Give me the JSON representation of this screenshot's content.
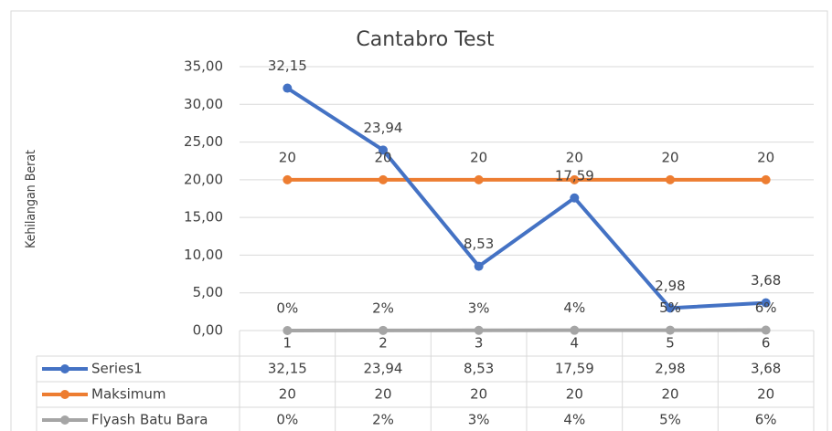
{
  "chart_data": {
    "type": "line",
    "title": "Cantabro Test",
    "y_label": "Kehilangan Berat",
    "categories": [
      "1",
      "2",
      "3",
      "4",
      "5",
      "6"
    ],
    "series": [
      {
        "name": "Series1",
        "color": "#4472c4",
        "values": [
          32.15,
          23.94,
          8.53,
          17.59,
          2.98,
          3.68
        ],
        "value_labels": [
          "32,15",
          "23,94",
          "8,53",
          "17,59",
          "2,98",
          "3,68"
        ]
      },
      {
        "name": "Maksimum",
        "color": "#ed7d31",
        "values": [
          20,
          20,
          20,
          20,
          20,
          20
        ]
      },
      {
        "name": "Flyash Batu Bara",
        "color": "#a5a5a5",
        "values": [
          0,
          0.02,
          0.03,
          0.04,
          0.05,
          0.06
        ],
        "value_labels": [
          "0%",
          "2%",
          "3%",
          "4%",
          "5%",
          "6%"
        ]
      }
    ],
    "ylim": [
      0,
      35
    ],
    "yticks": [
      {
        "value": 0,
        "label": "0,00"
      },
      {
        "value": 5,
        "label": "5,00"
      },
      {
        "value": 10,
        "label": "10,00"
      },
      {
        "value": 15,
        "label": "15,00"
      },
      {
        "value": 20,
        "label": "20,00"
      },
      {
        "value": 25,
        "label": "25,00"
      },
      {
        "value": 30,
        "label": "30,00"
      },
      {
        "value": 35,
        "label": "35,00"
      }
    ],
    "grid": true
  }
}
